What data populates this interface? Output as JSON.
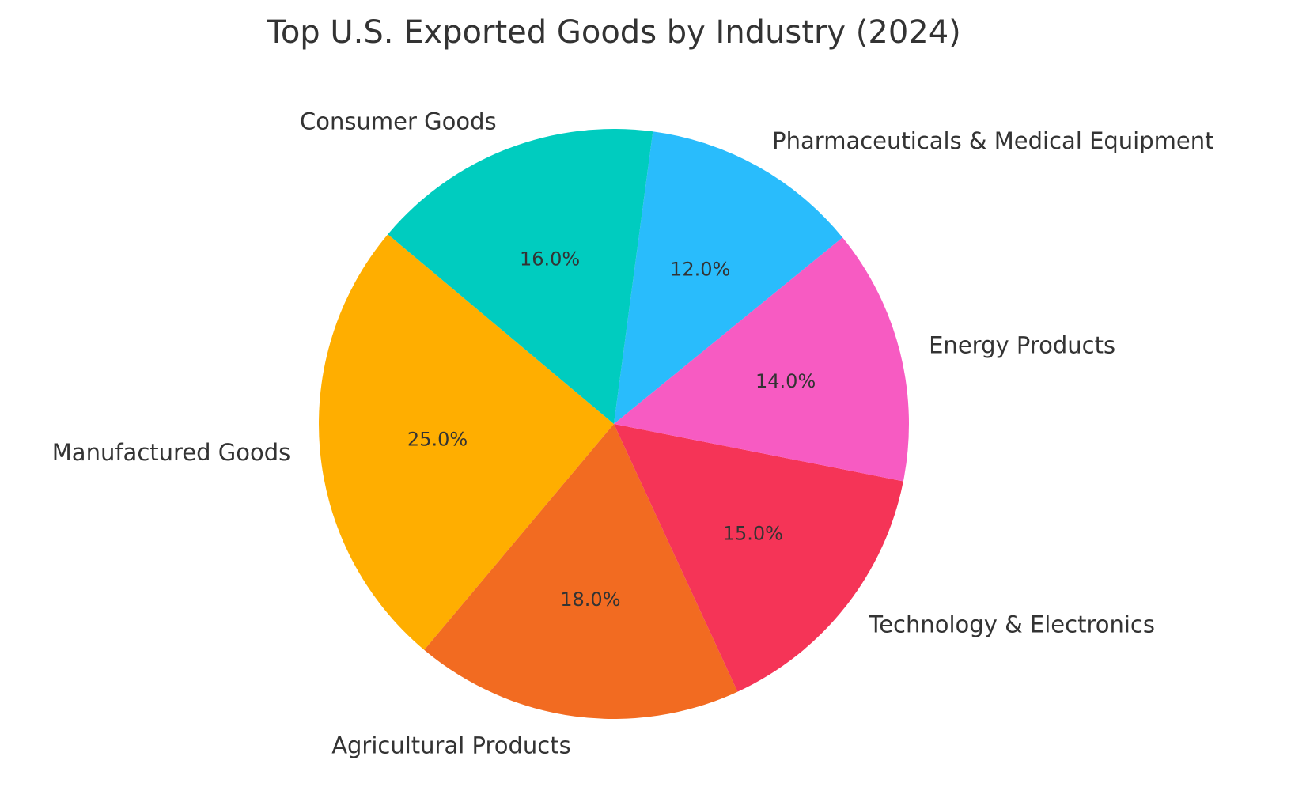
{
  "chart_data": {
    "type": "pie",
    "title": "Top U.S. Exported Goods by Industry (2024)",
    "start_angle_deg": 140,
    "direction": "counterclockwise",
    "slices": [
      {
        "label": "Manufactured Goods",
        "value": 25.0,
        "pct_label": "25.0%",
        "color": "#FFAE00"
      },
      {
        "label": "Agricultural Products",
        "value": 18.0,
        "pct_label": "18.0%",
        "color": "#F26B21"
      },
      {
        "label": "Technology & Electronics",
        "value": 15.0,
        "pct_label": "15.0%",
        "color": "#F53457"
      },
      {
        "label": "Energy Products",
        "value": 14.0,
        "pct_label": "14.0%",
        "color": "#F75BC2"
      },
      {
        "label": "Pharmaceuticals & Medical Equipment",
        "value": 12.0,
        "pct_label": "12.0%",
        "color": "#29BCFC"
      },
      {
        "label": "Consumer Goods",
        "value": 16.0,
        "pct_label": "16.0%",
        "color": "#00CCBF"
      }
    ]
  }
}
